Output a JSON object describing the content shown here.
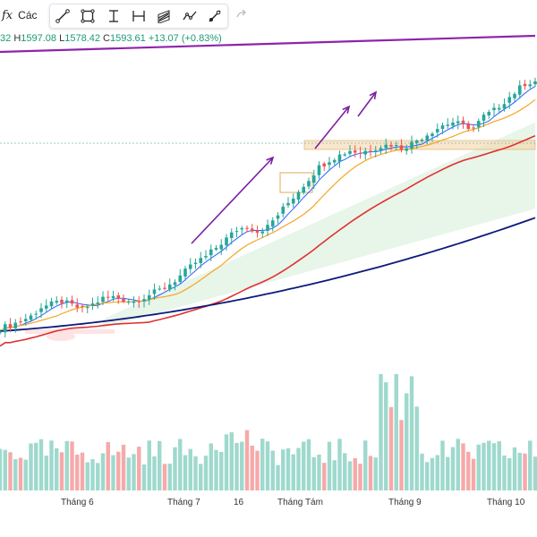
{
  "toolbar": {
    "fx_label": "fx",
    "truncated_label": "Các",
    "tools": [
      "trend-line-tool",
      "rectangle-tool",
      "text-range-tool",
      "measure-range-tool",
      "parallel-channel-tool",
      "polyline-tool",
      "ray-tool"
    ]
  },
  "ohlc": {
    "open_partial": "32",
    "high_key": "H",
    "high": "1597.08",
    "low_key": "L",
    "low": "1578.42",
    "close_key": "C",
    "close": "1593.61",
    "change": "+13.07 (+0.83%)"
  },
  "x_axis_labels": [
    "Tháng 6",
    "Tháng 7",
    "16",
    "Tháng Tám",
    "Tháng 9",
    "Tháng 10"
  ],
  "colors": {
    "up": "#26a69a",
    "down": "#ef5350",
    "vol_up": "#9ed9cd",
    "vol_down": "#f6a9a9",
    "ma_blue": "#2962ff",
    "ma_orange": "#f5a623",
    "ma_red": "#e03131",
    "ma_navy": "#0d1a7a",
    "resistance": "#8e24aa",
    "arrows": "#7b1fa2",
    "cloud": "#e8f5e9",
    "cloud_red": "#fde3e3",
    "zone": "#f3d3a4"
  },
  "chart_data": {
    "type": "candlestick",
    "price_unit": "index points",
    "last_bar": {
      "high": 1597.08,
      "low": 1578.42,
      "close": 1593.61,
      "change": 13.07,
      "change_pct": 0.83
    },
    "trend_description": "uptrend from early June to October with three impulse legs marked by arrows",
    "series": [
      {
        "name": "",
        "kind": "price",
        "close_path": [
          1180,
          1185,
          1192,
          1200,
          1215,
          1220,
          1225,
          1218,
          1212,
          1220,
          1230,
          1232,
          1228,
          1225,
          1232,
          1240,
          1248,
          1260,
          1275,
          1290,
          1300,
          1315,
          1330,
          1345,
          1350,
          1342,
          1350,
          1370,
          1390,
          1410,
          1430,
          1450,
          1462,
          1470,
          1478,
          1474,
          1480,
          1485,
          1488,
          1482,
          1490,
          1500,
          1510,
          1520,
          1525,
          1520,
          1515,
          1535,
          1545,
          1560,
          1575,
          1590,
          1593.61
        ]
      }
    ],
    "x_labels": [
      "Tháng 6",
      "Tháng 7",
      "16",
      "Tháng Tám",
      "Tháng 9",
      "Tháng 10"
    ]
  }
}
